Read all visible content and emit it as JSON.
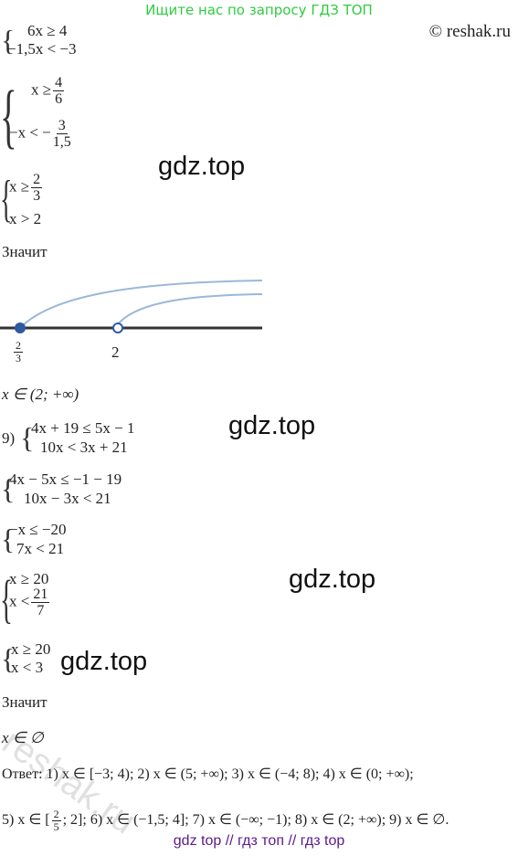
{
  "header": {
    "search_hint": "Ищите нас по запросу ГДЗ ТОП",
    "copyright": "© reshak.ru"
  },
  "steps": [
    {
      "lines": [
        "6x ≥ 4",
        "−1,5x < −3"
      ]
    },
    {
      "lines": [
        {
          "left": "x ≥",
          "num": "4",
          "den": "6"
        },
        {
          "left": "−x < −",
          "num": "3",
          "den": "1,5"
        }
      ]
    },
    {
      "lines": [
        {
          "left": "x ≥",
          "num": "2",
          "den": "3"
        },
        "x > 2"
      ]
    },
    {
      "text": "Значит"
    },
    {
      "number_line": {
        "points": [
          {
            "num": "2",
            "den": "3"
          },
          "2"
        ]
      }
    },
    {
      "text": "x ∈ (2; +∞)"
    },
    {
      "label": "9)",
      "lines": [
        "4x + 19 ≤ 5x − 1",
        "10x < 3x + 21"
      ]
    },
    {
      "lines": [
        "4x − 5x ≤ −1 − 19",
        "10x − 3x < 21"
      ]
    },
    {
      "lines": [
        "−x ≤ −20",
        "7x < 21"
      ]
    },
    {
      "lines": [
        "x ≥ 20",
        {
          "left": "x <",
          "num": "21",
          "den": "7"
        }
      ]
    },
    {
      "lines": [
        "x ≥ 20",
        "x < 3"
      ]
    },
    {
      "text": "Значит"
    },
    {
      "text": "x ∈ ∅"
    },
    {
      "answer": [
        "Ответ: 1) x ∈ [−3; 4); 2)  x ∈ (5; +∞); 3) x ∈ (−4; 8); 4) x ∈ (0; +∞);",
        {
          "left": "5) x ∈ [",
          "num": "2",
          "den": "5",
          "right": "; 2]; 6)  x ∈ (−1,5; 4]; 7) x ∈ (−∞; −1); 8) x ∈ (2; +∞); 9) x ∈ ∅."
        }
      ]
    }
  ],
  "watermarks": [
    "gdz.top",
    "gdz.top",
    "gdz.top",
    "gdz.top",
    "reshak.ru"
  ],
  "footer": "gdz top  //  гдз топ  //  гдз top"
}
